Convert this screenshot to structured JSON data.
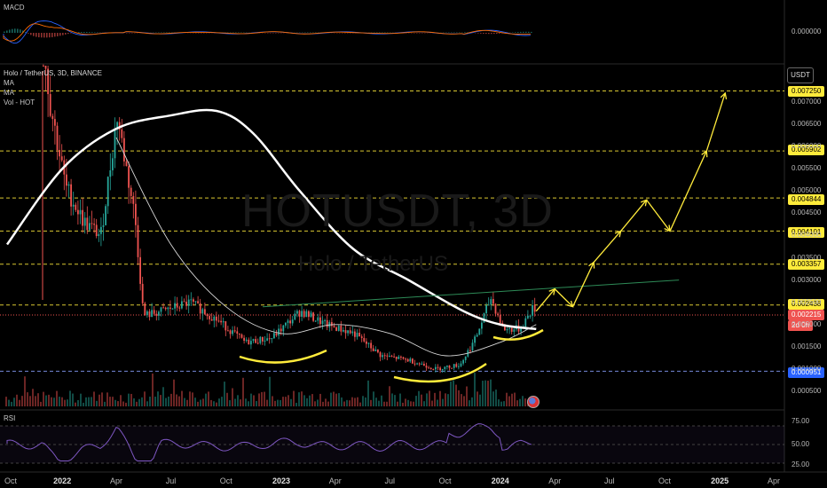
{
  "header": {
    "macd_label": "MACD",
    "symbol_line": "Holo / TetherUS, 3D, BINANCE",
    "indicators": [
      "MA",
      "MA",
      "Vol - HOT"
    ],
    "rsi_label": "RSI",
    "currency_button": "USDT",
    "countdown": "2d 0h"
  },
  "watermark": {
    "ticker": "HOTUSDT, 3D",
    "name": "Holo / TetherUS"
  },
  "colors": {
    "background": "#000000",
    "up": "#26a69a",
    "down": "#ef5350",
    "ma_slow": "#ffffff",
    "projection": "#ffeb3b",
    "rsi": "#7e57c2",
    "current_price": "#ef5350",
    "macd_value_tag": "#2962ff"
  },
  "chart_data": {
    "type": "candlestick",
    "symbol": "HOTUSDT",
    "exchange": "BINANCE",
    "timeframe": "3D",
    "x_ticks": [
      "Oct",
      "2022",
      "Apr",
      "Jul",
      "Oct",
      "2023",
      "Apr",
      "Jul",
      "Oct",
      "2024",
      "Apr",
      "Jul",
      "Oct",
      "2025",
      "Apr"
    ],
    "y_ticks": [
      "0.007000",
      "0.006500",
      "0.006000",
      "0.005500",
      "0.005000",
      "0.004500",
      "0.004000",
      "0.003500",
      "0.003000",
      "0.002500",
      "0.002000",
      "0.001500",
      "0.001000",
      "0.000500"
    ],
    "ylim": [
      0.0002,
      0.0076
    ],
    "current_price": "0.002215",
    "levels": [
      "0.007250",
      "0.005902",
      "0.004844",
      "0.004101",
      "0.003357",
      "0.002438",
      "0.000951"
    ],
    "macd_value": "0.000000",
    "rsi_ticks": [
      "75.00",
      "50.00",
      "25.00"
    ],
    "price_series": [
      {
        "x": "2021-10-15",
        "y": 0.0088
      },
      {
        "x": "2021-11-10",
        "y": 0.0105
      },
      {
        "x": "2021-12-10",
        "y": 0.007
      },
      {
        "x": "2022-01-05",
        "y": 0.0051
      },
      {
        "x": "2022-02-05",
        "y": 0.0043
      },
      {
        "x": "2022-03-05",
        "y": 0.004
      },
      {
        "x": "2022-04-01",
        "y": 0.0067
      },
      {
        "x": "2022-05-01",
        "y": 0.0044
      },
      {
        "x": "2022-05-15",
        "y": 0.0022
      },
      {
        "x": "2022-06-15",
        "y": 0.0023
      },
      {
        "x": "2022-08-01",
        "y": 0.0025
      },
      {
        "x": "2022-09-15",
        "y": 0.0021
      },
      {
        "x": "2022-11-01",
        "y": 0.0016
      },
      {
        "x": "2022-12-15",
        "y": 0.0017
      },
      {
        "x": "2023-02-01",
        "y": 0.0023
      },
      {
        "x": "2023-03-15",
        "y": 0.002
      },
      {
        "x": "2023-05-01",
        "y": 0.0018
      },
      {
        "x": "2023-06-15",
        "y": 0.0013
      },
      {
        "x": "2023-08-01",
        "y": 0.0012
      },
      {
        "x": "2023-09-15",
        "y": 0.001
      },
      {
        "x": "2023-10-25",
        "y": 0.0011
      },
      {
        "x": "2023-11-20",
        "y": 0.0017
      },
      {
        "x": "2023-12-15",
        "y": 0.0026
      },
      {
        "x": "2024-01-05",
        "y": 0.0019
      },
      {
        "x": "2024-02-01",
        "y": 0.0019
      },
      {
        "x": "2024-02-25",
        "y": 0.0024
      },
      {
        "x": "2024-03-01",
        "y": 0.002215
      }
    ],
    "ma_slow_series": [
      {
        "x": "2021-10-01",
        "y": 0.0038
      },
      {
        "x": "2022-01-01",
        "y": 0.0055
      },
      {
        "x": "2022-04-01",
        "y": 0.0064
      },
      {
        "x": "2022-07-01",
        "y": 0.0067
      },
      {
        "x": "2022-09-15",
        "y": 0.0068
      },
      {
        "x": "2022-11-15",
        "y": 0.0063
      },
      {
        "x": "2023-02-01",
        "y": 0.005
      },
      {
        "x": "2023-05-01",
        "y": 0.0037
      },
      {
        "x": "2023-08-01",
        "y": 0.003
      },
      {
        "x": "2023-11-01",
        "y": 0.0023
      },
      {
        "x": "2024-01-01",
        "y": 0.002
      },
      {
        "x": "2024-03-01",
        "y": 0.0019
      }
    ],
    "ma_fast_series": [
      {
        "x": "2022-04-01",
        "y": 0.0062
      },
      {
        "x": "2022-07-01",
        "y": 0.0038
      },
      {
        "x": "2022-10-01",
        "y": 0.0024
      },
      {
        "x": "2023-01-01",
        "y": 0.0018
      },
      {
        "x": "2023-04-01",
        "y": 0.002
      },
      {
        "x": "2023-07-01",
        "y": 0.0018
      },
      {
        "x": "2023-10-01",
        "y": 0.0013
      },
      {
        "x": "2024-01-01",
        "y": 0.0016
      },
      {
        "x": "2024-03-01",
        "y": 0.002
      }
    ],
    "projection_path": [
      {
        "x": "2024-03-01",
        "y": 0.0023
      },
      {
        "x": "2024-04-01",
        "y": 0.0028
      },
      {
        "x": "2024-05-01",
        "y": 0.0024
      },
      {
        "x": "2024-06-05",
        "y": 0.0034
      },
      {
        "x": "2024-07-20",
        "y": 0.0041
      },
      {
        "x": "2024-09-01",
        "y": 0.0048
      },
      {
        "x": "2024-10-10",
        "y": 0.0041
      },
      {
        "x": "2024-12-10",
        "y": 0.0059
      },
      {
        "x": "2025-01-10",
        "y": 0.0072
      }
    ],
    "trendline": [
      {
        "x": "2022-12-01",
        "y": 0.0024
      },
      {
        "x": "2024-10-25",
        "y": 0.003
      }
    ]
  }
}
